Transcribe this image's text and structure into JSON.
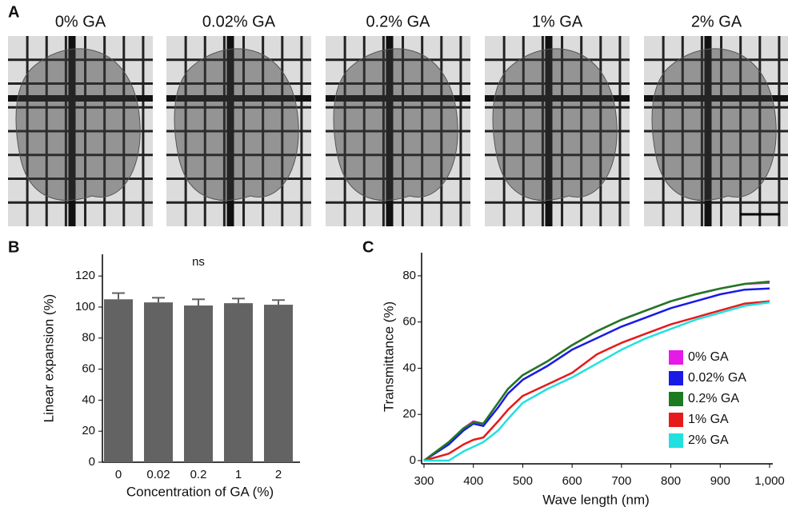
{
  "panel_a": {
    "label": "A",
    "titles": [
      "0% GA",
      "0.02% GA",
      "0.2% GA",
      "1% GA",
      "2% GA"
    ]
  },
  "chart_data": [
    {
      "type": "bar",
      "panel_label": "B",
      "annotation": "ns",
      "xlabel": "Concentration of GA (%)",
      "ylabel": "Linear expansion (%)",
      "categories": [
        "0",
        "0.02",
        "0.2",
        "1",
        "2"
      ],
      "values": [
        105,
        103,
        101,
        102.5,
        101.5
      ],
      "errors": [
        4,
        3,
        4,
        3,
        3
      ],
      "color": "#636363",
      "ylim": [
        0,
        134
      ],
      "yticks": [
        0,
        20,
        40,
        60,
        80,
        100,
        120
      ]
    },
    {
      "type": "line",
      "panel_label": "C",
      "xlabel": "Wave length (nm)",
      "ylabel": "Transmittance (%)",
      "x": [
        300,
        350,
        380,
        400,
        420,
        450,
        470,
        500,
        550,
        600,
        650,
        700,
        750,
        800,
        850,
        900,
        950,
        1000
      ],
      "series": [
        {
          "name": "0% GA",
          "color": "#e619e6",
          "values": [
            0,
            8,
            14,
            17,
            16,
            25,
            31,
            37,
            43,
            50,
            56,
            61,
            65,
            69,
            72,
            74.5,
            76.5,
            77
          ]
        },
        {
          "name": "0.02% GA",
          "color": "#1a1ae6",
          "values": [
            0,
            7,
            13,
            16,
            15,
            23,
            29,
            35,
            41,
            48,
            53,
            58,
            62,
            66,
            69,
            72,
            74,
            74.5
          ]
        },
        {
          "name": "0.2% GA",
          "color": "#1e7a1e",
          "values": [
            0,
            8,
            14,
            16.5,
            16,
            25,
            31,
            37,
            43,
            50,
            56,
            61,
            65,
            69,
            72,
            74.5,
            76.5,
            77.5
          ]
        },
        {
          "name": "1% GA",
          "color": "#e61a1a",
          "values": [
            0,
            3,
            7,
            9,
            10,
            17,
            22,
            28,
            33,
            38,
            46,
            51,
            55,
            59,
            62,
            65,
            68,
            69
          ]
        },
        {
          "name": "2% GA",
          "color": "#22e0e0",
          "values": [
            0,
            0,
            4,
            6,
            8,
            13,
            18,
            25,
            31,
            36,
            42,
            48,
            53,
            57,
            61,
            64,
            67,
            68.5
          ]
        }
      ],
      "xlim": [
        300,
        1000
      ],
      "xticks": [
        300,
        400,
        500,
        600,
        700,
        800,
        900,
        {
          "value": 1000,
          "label": "1,000"
        }
      ],
      "ylim": [
        0,
        90
      ],
      "yticks": [
        0,
        20,
        40,
        60,
        80
      ],
      "legend": "lower right"
    }
  ]
}
